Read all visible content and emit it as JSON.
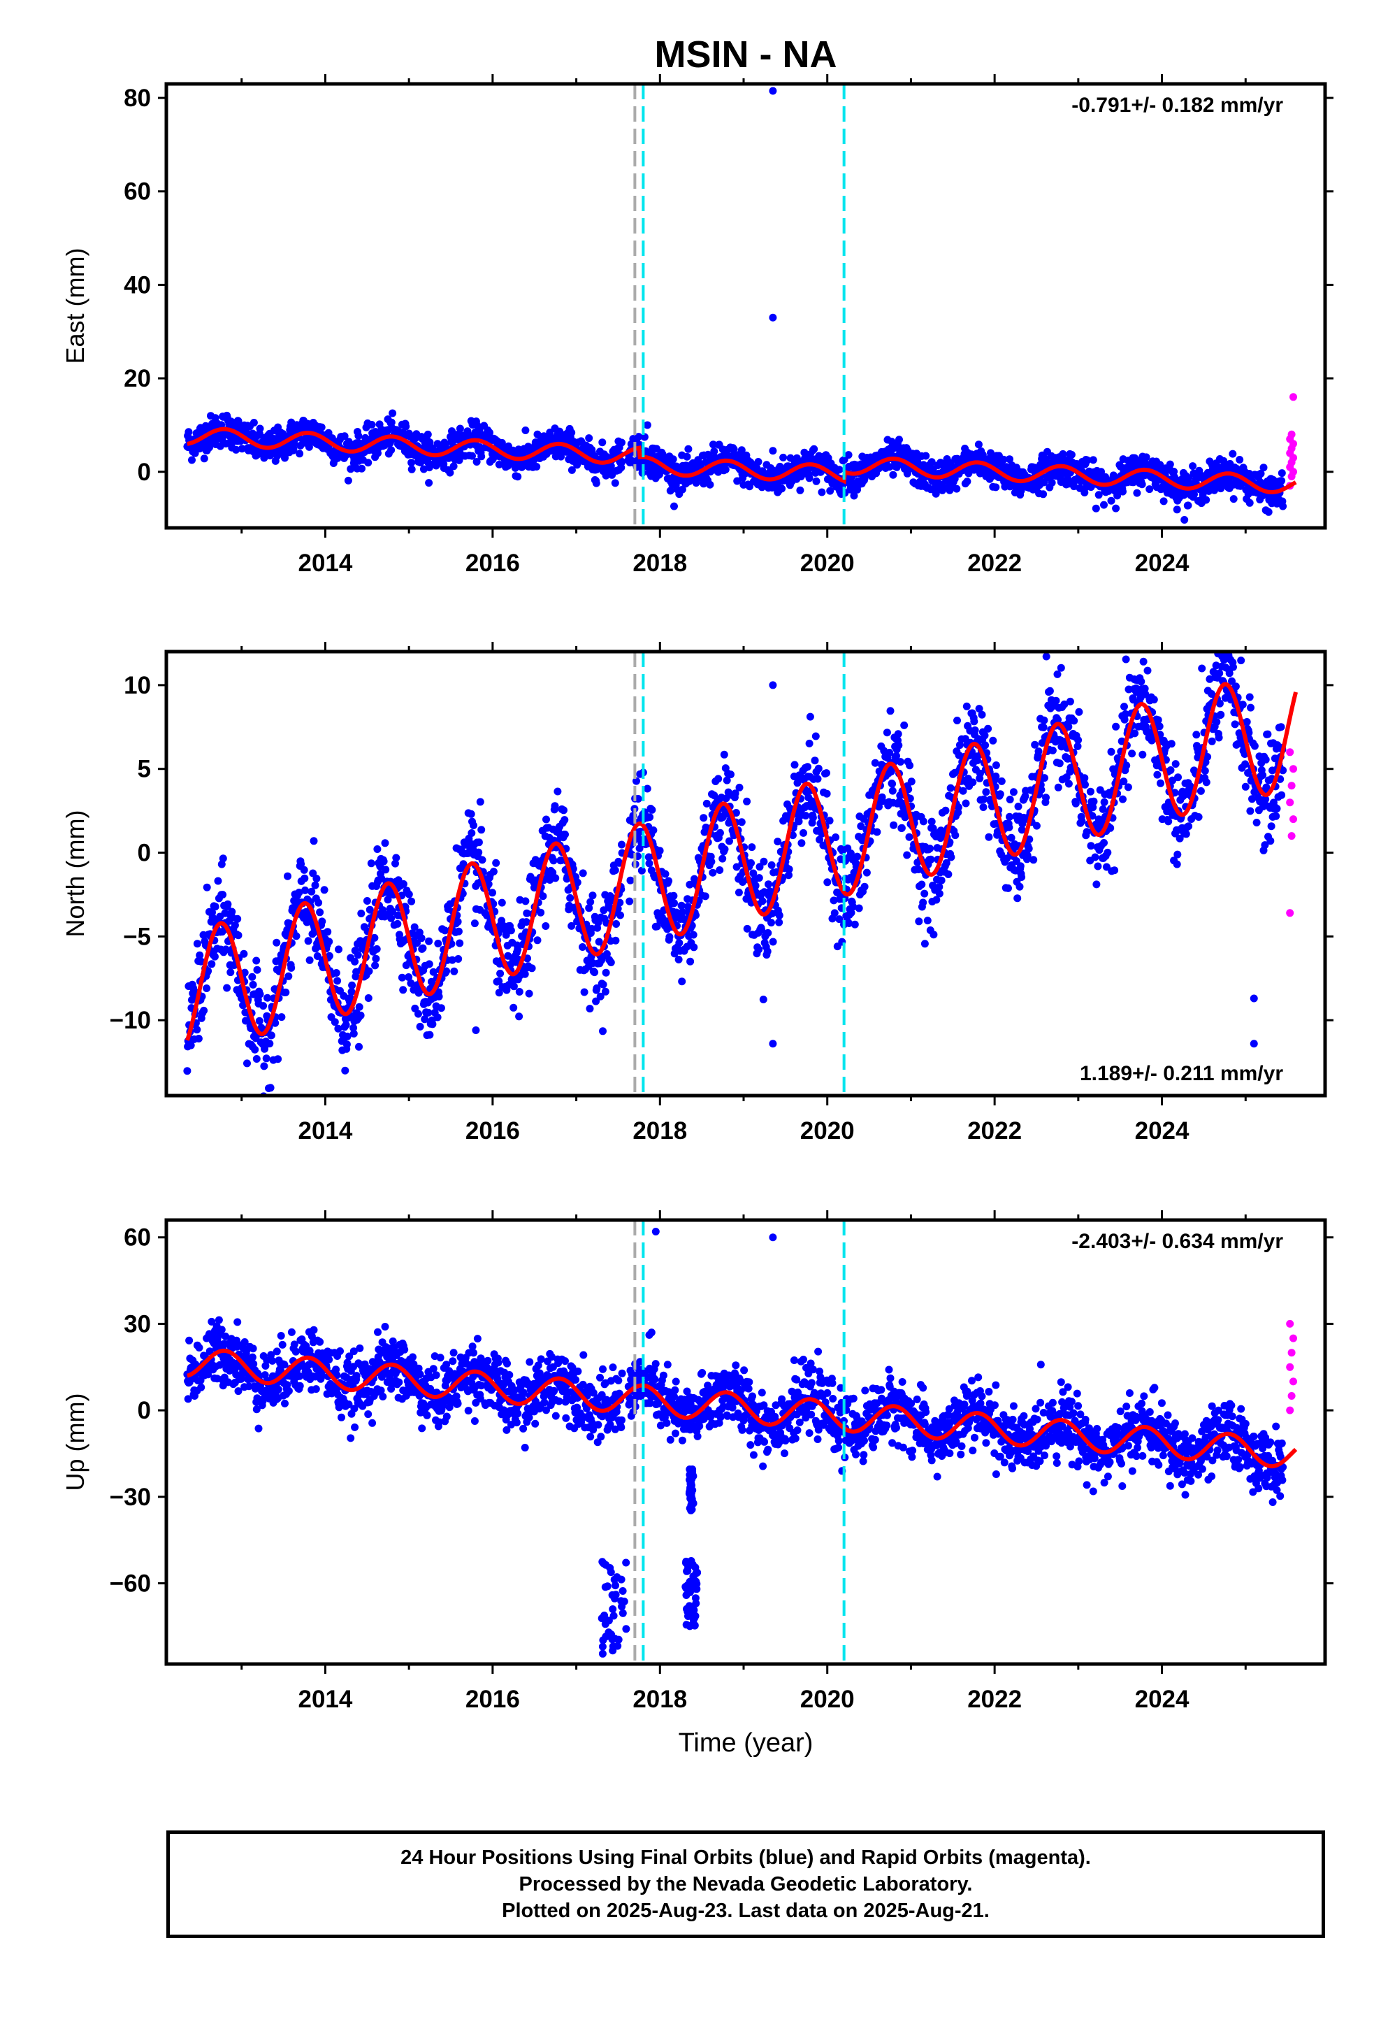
{
  "title": "MSIN - NA",
  "colors": {
    "final_orbits": "#0000ff",
    "rapid_orbits": "#ff00ff",
    "model_fit": "#ff0000",
    "steps": "#00e5ee",
    "step_gray": "#aaaaaa"
  },
  "chart_data": [
    {
      "type": "scatter",
      "panel": "east",
      "ylabel": "East (mm)",
      "ylim": [
        -12,
        83
      ],
      "yticks": [
        0,
        20,
        40,
        60,
        80
      ],
      "xlim": [
        2012.1,
        2025.95
      ],
      "xticks": [
        2014,
        2016,
        2018,
        2020,
        2022,
        2024
      ],
      "xlabel": "",
      "rate": "-0.791+/- 0.182 mm/yr",
      "rate_position": "top-right",
      "fit": {
        "rate": -0.791,
        "offset": 2.5,
        "annual_amp": 1.8,
        "annual_phase": 0.55,
        "noise": 1.8
      },
      "offsets": [
        {
          "start": 2017.75,
          "end": 2020.2,
          "value": -2.0
        }
      ],
      "steps_cyan": [
        2017.8,
        2020.2
      ],
      "steps_gray": [
        2017.7
      ],
      "outliers": [
        [
          2019.35,
          81.5
        ],
        [
          2019.35,
          33
        ],
        [
          2017.85,
          10
        ],
        [
          2019.35,
          4.5
        ]
      ],
      "rapid_start": 2025.45,
      "rapid_values": [
        -3,
        -1,
        0,
        1,
        2,
        3,
        4,
        5,
        6,
        7,
        8,
        16
      ]
    },
    {
      "type": "scatter",
      "panel": "north",
      "ylabel": "North (mm)",
      "ylim": [
        -14.5,
        12
      ],
      "yticks": [
        -10,
        -5,
        0,
        5,
        10
      ],
      "xlim": [
        2012.1,
        2025.95
      ],
      "xticks": [
        2014,
        2016,
        2018,
        2020,
        2022,
        2024
      ],
      "xlabel": "",
      "rate": "1.189+/- 0.211 mm/yr",
      "rate_position": "bottom-right",
      "fit": {
        "rate": 1.189,
        "offset": -0.5,
        "annual_amp": 3.6,
        "annual_phase": 0.5,
        "noise": 1.5
      },
      "offsets": [],
      "steps_cyan": [
        2017.8,
        2020.2
      ],
      "steps_gray": [
        2017.7
      ],
      "outliers": [
        [
          2019.35,
          -11.4
        ],
        [
          2019.35,
          10
        ],
        [
          2025.1,
          -11.4
        ],
        [
          2025.1,
          -8.7
        ],
        [
          2015.8,
          -10.6
        ]
      ],
      "rapid_start": 2025.45,
      "rapid_values": [
        -3.6,
        1,
        2,
        3,
        4,
        5,
        6
      ]
    },
    {
      "type": "scatter",
      "panel": "up",
      "ylabel": "Up (mm)",
      "ylim": [
        -88,
        66
      ],
      "yticks": [
        -60,
        -30,
        0,
        30,
        60
      ],
      "xlim": [
        2012.1,
        2025.95
      ],
      "xticks": [
        2014,
        2016,
        2018,
        2020,
        2022,
        2024
      ],
      "xlabel": "Time (year)",
      "rate": "-2.403+/- 0.634 mm/yr",
      "rate_position": "top-right",
      "fit": {
        "rate": -2.403,
        "offset": 1.0,
        "annual_amp": 5.0,
        "annual_phase": 0.55,
        "noise": 5.5
      },
      "offsets": [],
      "steps_cyan": [
        2017.8,
        2020.2
      ],
      "steps_gray": [
        2017.7
      ],
      "outliers": [
        [
          2017.95,
          62
        ],
        [
          2019.35,
          60
        ],
        [
          2017.9,
          27
        ]
      ],
      "clusters": [
        {
          "x0": 2017.3,
          "x1": 2017.6,
          "y0": -85,
          "y1": -52
        },
        {
          "x0": 2018.3,
          "x1": 2018.45,
          "y0": -75,
          "y1": -52
        },
        {
          "x0": 2018.35,
          "x1": 2018.4,
          "y0": -35,
          "y1": -20
        }
      ],
      "rapid_start": 2025.45,
      "rapid_values": [
        0,
        5,
        10,
        15,
        20,
        25,
        30
      ]
    }
  ],
  "footer": {
    "line1": "24 Hour Positions Using Final Orbits (blue) and Rapid Orbits (magenta).",
    "line2": "Processed by the Nevada Geodetic Laboratory.",
    "line3": "Plotted on 2025-Aug-23. Last data on 2025-Aug-21."
  }
}
